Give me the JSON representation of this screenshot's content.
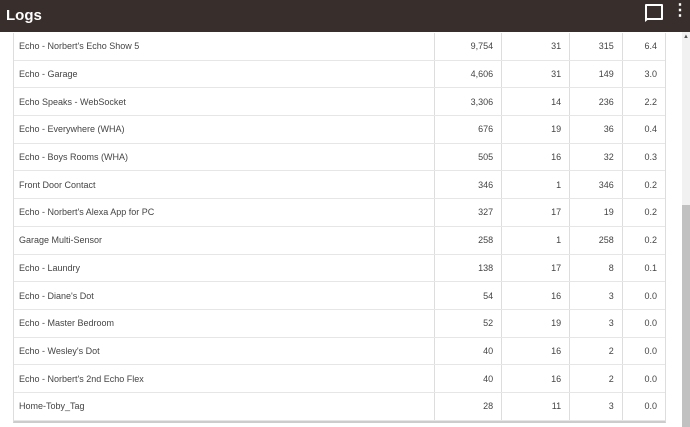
{
  "header": {
    "title": "Logs",
    "chat_icon": "chat-bubble-icon",
    "menu_icon": "more-vert-icon"
  },
  "rows": [
    [
      "Echo - Norbert's Echo Show 5",
      "9,754",
      "31",
      "315",
      "6.4"
    ],
    [
      "Echo - Garage",
      "4,606",
      "31",
      "149",
      "3.0"
    ],
    [
      "Echo Speaks - WebSocket",
      "3,306",
      "14",
      "236",
      "2.2"
    ],
    [
      "Echo - Everywhere (WHA)",
      "676",
      "19",
      "36",
      "0.4"
    ],
    [
      "Echo - Boys Rooms (WHA)",
      "505",
      "16",
      "32",
      "0.3"
    ],
    [
      "Front Door Contact",
      "346",
      "1",
      "346",
      "0.2"
    ],
    [
      "Echo - Norbert's Alexa App for PC",
      "327",
      "17",
      "19",
      "0.2"
    ],
    [
      "Garage Multi-Sensor",
      "258",
      "1",
      "258",
      "0.2"
    ],
    [
      "Echo - Laundry",
      "138",
      "17",
      "8",
      "0.1"
    ],
    [
      "Echo - Diane's Dot",
      "54",
      "16",
      "3",
      "0.0"
    ],
    [
      "Echo - Master Bedroom",
      "52",
      "19",
      "3",
      "0.0"
    ],
    [
      "Echo - Wesley's Dot",
      "40",
      "16",
      "2",
      "0.0"
    ],
    [
      "Echo - Norbert's 2nd Echo Flex",
      "40",
      "16",
      "2",
      "0.0"
    ],
    [
      "Home-Toby_Tag",
      "28",
      "11",
      "3",
      "0.0"
    ]
  ]
}
